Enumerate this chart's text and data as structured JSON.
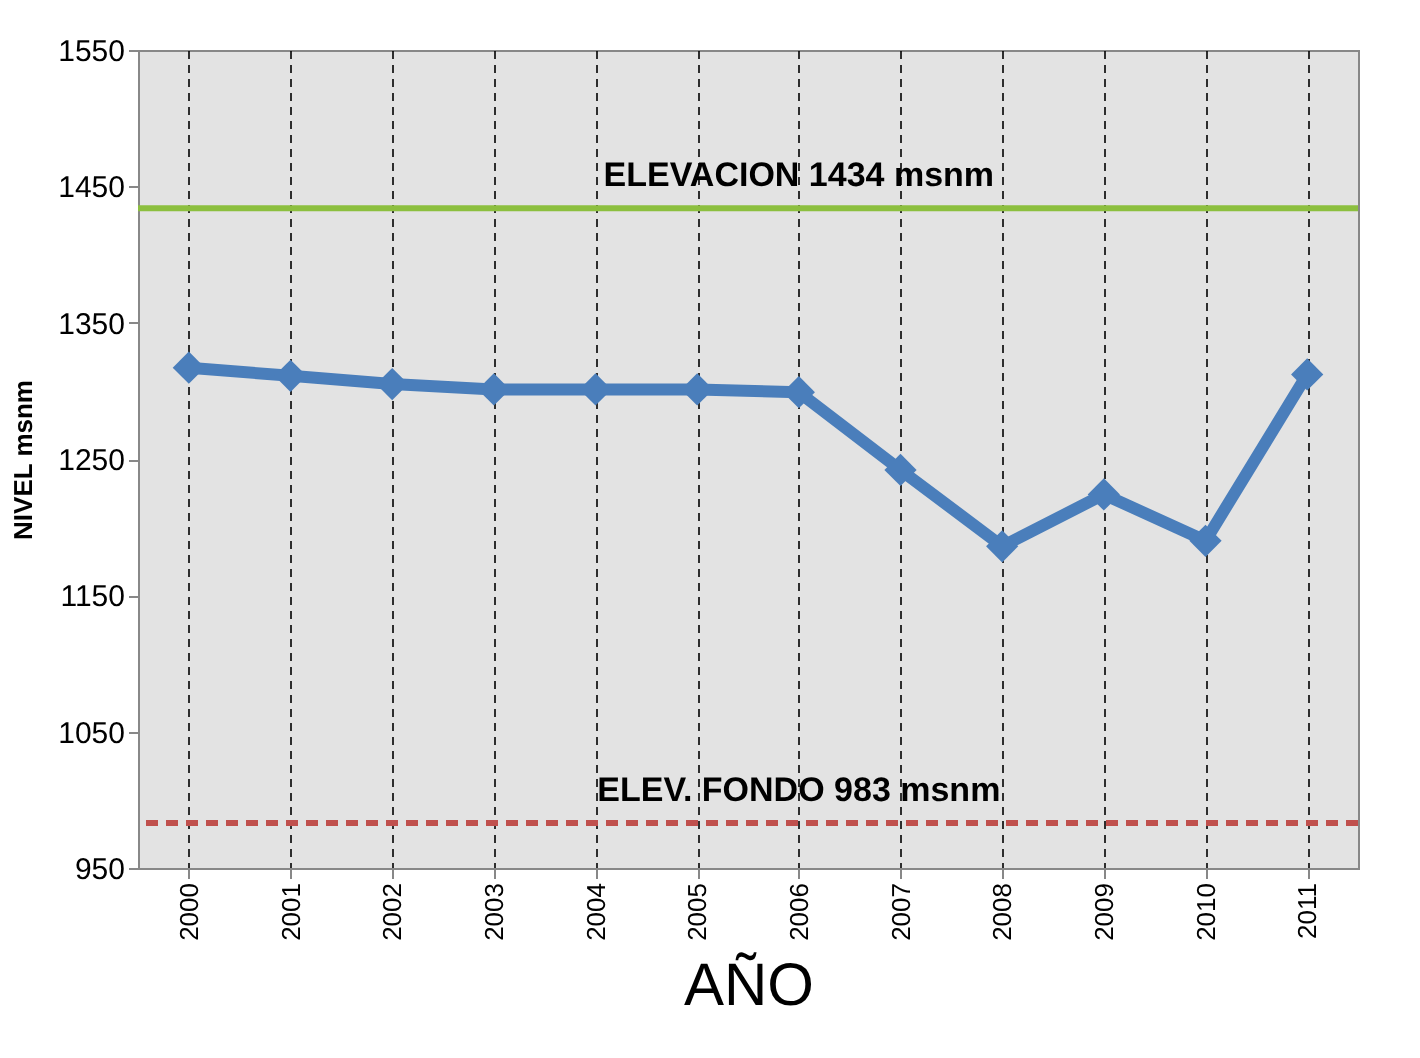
{
  "chart_data": {
    "type": "line",
    "xlabel": "AÑO",
    "ylabel": "NIVEL msnm",
    "categories": [
      "2000",
      "2001",
      "2002",
      "2003",
      "2004",
      "2005",
      "2006",
      "2007",
      "2008",
      "2009",
      "2010",
      "2011"
    ],
    "series": [
      {
        "color": "#4a7ebb",
        "values": [
          1317,
          1311,
          1305,
          1301,
          1301,
          1301,
          1299,
          1242,
          1186,
          1224,
          1190,
          1312
        ]
      }
    ],
    "ylim": [
      950,
      1550
    ],
    "yticks": [
      950,
      1050,
      1150,
      1250,
      1350,
      1450,
      1550
    ],
    "ref_lines": [
      {
        "axis": "y",
        "value": 1434,
        "label": "ELEVACION 1434 msnm",
        "color": "#8cbf3f",
        "line_style": "solid"
      },
      {
        "axis": "y",
        "value": 983,
        "label": "ELEV. FONDO 983 msnm",
        "color": "#c0504d",
        "line_style": "dashed"
      }
    ],
    "grid": "x",
    "marker": "diamond",
    "line_style": "solid"
  }
}
